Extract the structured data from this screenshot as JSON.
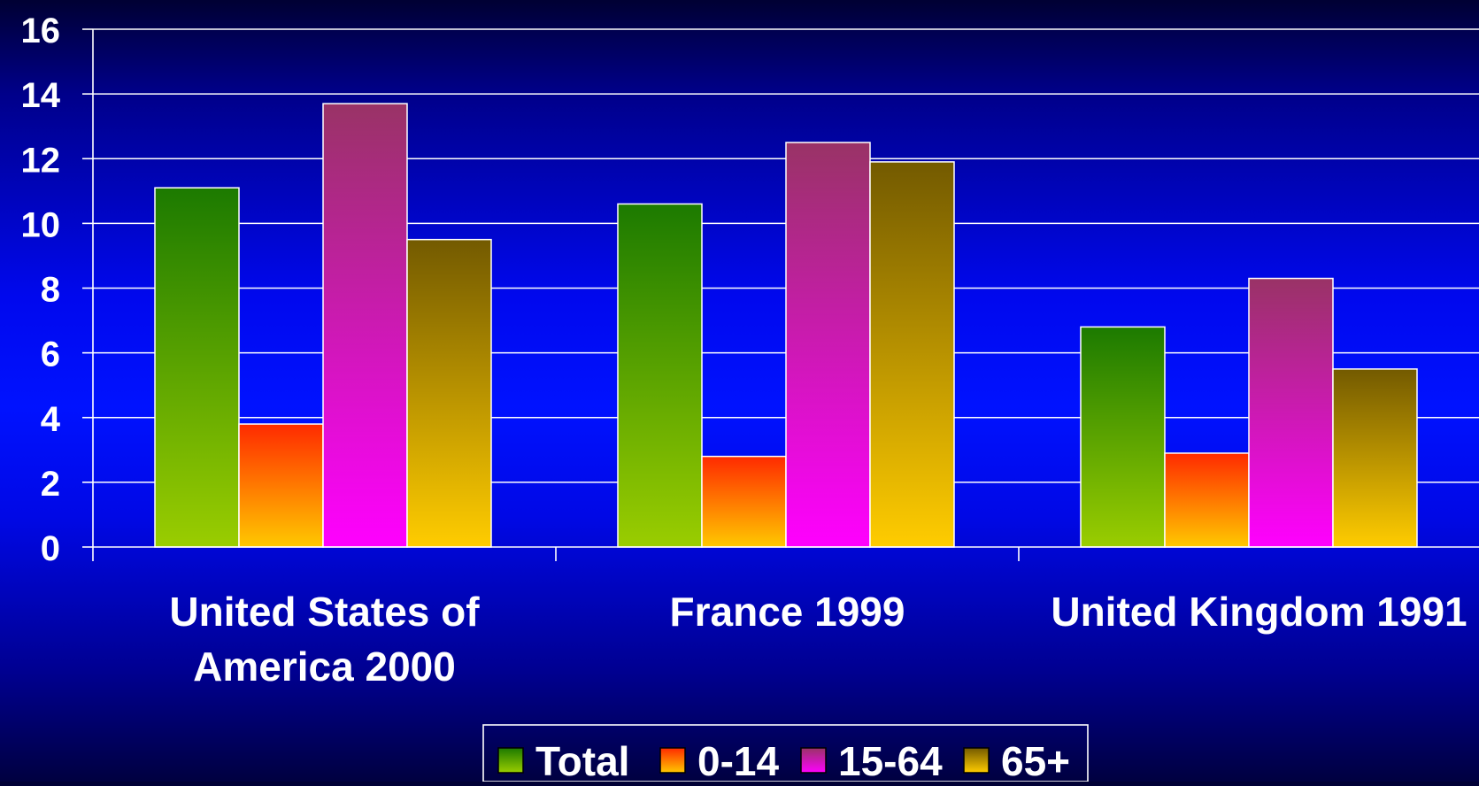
{
  "chart_data": {
    "type": "bar",
    "categories": [
      [
        "United States of",
        "America 2000"
      ],
      [
        "France 1999"
      ],
      [
        "United Kingdom 1991"
      ]
    ],
    "series": [
      {
        "name": "Total",
        "values": [
          11.1,
          10.6,
          6.8
        ],
        "color_top": "#1c7a00",
        "color_bottom": "#9acd00"
      },
      {
        "name": "0-14",
        "values": [
          3.8,
          2.8,
          2.9
        ],
        "color_top": "#ff2a00",
        "color_bottom": "#ffc800"
      },
      {
        "name": "15-64",
        "values": [
          13.7,
          12.5,
          8.3
        ],
        "color_top": "#993366",
        "color_bottom": "#ff00ff"
      },
      {
        "name": "65+",
        "values": [
          9.5,
          11.9,
          5.5
        ],
        "color_top": "#735a00",
        "color_bottom": "#ffcc00"
      }
    ],
    "ylim": [
      0,
      16
    ],
    "yticks": [
      "0",
      "2",
      "4",
      "6",
      "8",
      "10",
      "12",
      "14",
      "16"
    ],
    "grid": true,
    "legend": "bottom-center",
    "grid_color": "#ffffff",
    "text_color": "#ffffff"
  }
}
